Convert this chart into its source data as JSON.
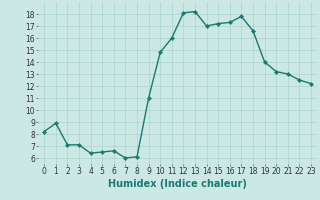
{
  "x": [
    0,
    1,
    2,
    3,
    4,
    5,
    6,
    7,
    8,
    9,
    10,
    11,
    12,
    13,
    14,
    15,
    16,
    17,
    18,
    19,
    20,
    21,
    22,
    23
  ],
  "y": [
    8.2,
    8.9,
    7.1,
    7.1,
    6.4,
    6.5,
    6.6,
    6.0,
    6.1,
    11.0,
    14.8,
    16.0,
    18.1,
    18.2,
    17.0,
    17.2,
    17.3,
    17.8,
    16.6,
    14.0,
    13.2,
    13.0,
    12.5,
    12.2
  ],
  "line_color": "#1a7a6e",
  "marker_color": "#1a7a6e",
  "bg_color": "#cce8e4",
  "grid_color": "#aad4ce",
  "xlabel": "Humidex (Indice chaleur)",
  "xlim": [
    -0.5,
    23.5
  ],
  "ylim": [
    5.5,
    19.0
  ],
  "yticks": [
    6,
    7,
    8,
    9,
    10,
    11,
    12,
    13,
    14,
    15,
    16,
    17,
    18
  ],
  "xticks": [
    0,
    1,
    2,
    3,
    4,
    5,
    6,
    7,
    8,
    9,
    10,
    11,
    12,
    13,
    14,
    15,
    16,
    17,
    18,
    19,
    20,
    21,
    22,
    23
  ],
  "tick_label_size": 5.5,
  "xlabel_size": 7.0,
  "line_width": 1.0,
  "marker_size": 2.2
}
